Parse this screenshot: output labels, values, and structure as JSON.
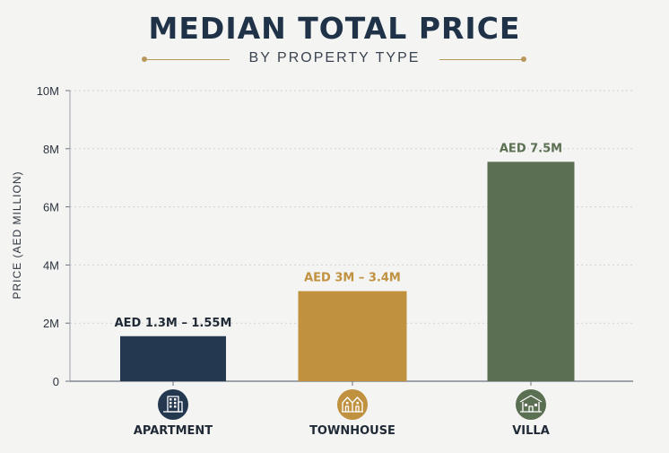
{
  "chart_data": {
    "type": "bar",
    "title": "MEDIAN TOTAL PRICE",
    "subtitle": "BY PROPERTY TYPE",
    "ylabel": "PRICE (AED MILLION)",
    "xlabel": "",
    "ylim": [
      0,
      10
    ],
    "yticks": [
      0,
      2,
      4,
      6,
      8,
      10
    ],
    "ytick_labels": [
      "0",
      "2M",
      "4M",
      "6M",
      "8M",
      "10M"
    ],
    "grid": true,
    "categories": [
      "APARTMENT",
      "TOWNHOUSE",
      "VILLA"
    ],
    "values": [
      1.55,
      3.1,
      7.55
    ],
    "data_labels": [
      "AED 1.3M – 1.55M",
      "AED 3M – 3.4M",
      "AED 7.5M"
    ],
    "colors": [
      "#243850",
      "#c0913f",
      "#5b6f52"
    ],
    "label_colors": [
      "#1f2a36",
      "#c0913f",
      "#5b6f52"
    ],
    "icons": [
      "apartment-building-icon",
      "townhouse-icon",
      "villa-icon"
    ]
  }
}
